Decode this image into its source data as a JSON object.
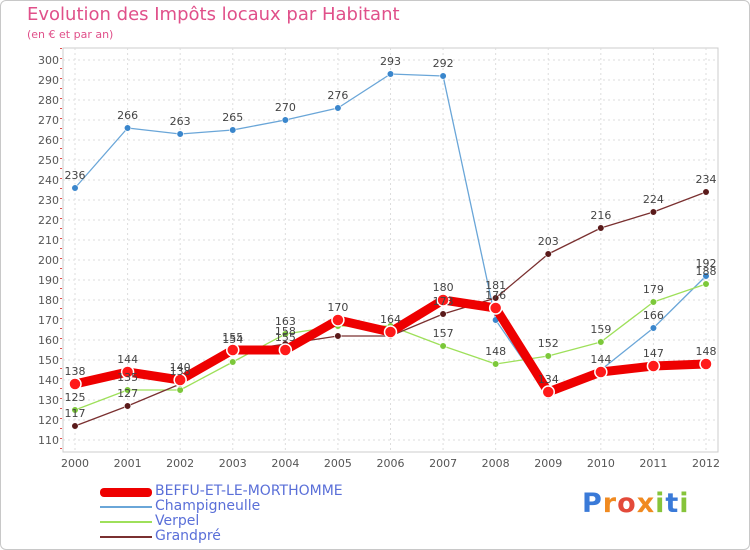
{
  "title": "Evolution des Impôts locaux par Habitant",
  "subtitle": "(en € et par an)",
  "logo_text": "Proxiti",
  "chart_data": {
    "type": "line",
    "title": "Evolution des Impôts locaux par Habitant",
    "subtitle": "(en € et par an)",
    "x": [
      "2000",
      "2001",
      "2002",
      "2003",
      "2004",
      "2005",
      "2006",
      "2007",
      "2008",
      "2009",
      "2010",
      "2011",
      "2012"
    ],
    "ylim": [
      110,
      300
    ],
    "yticks": [
      110,
      120,
      130,
      140,
      150,
      160,
      170,
      180,
      190,
      200,
      210,
      220,
      230,
      240,
      250,
      260,
      270,
      280,
      290,
      300
    ],
    "grid": true,
    "legend_position": "bottom-left",
    "series": [
      {
        "name": "Champigneulle",
        "color": "#6aa6d8",
        "marker_color": "#3a86cc",
        "values": [
          236,
          266,
          263,
          265,
          270,
          276,
          293,
          292,
          170,
          132,
          145,
          166,
          192
        ],
        "labels": [
          "236",
          "266",
          "263",
          "265",
          "270",
          "276",
          "293",
          "292",
          "",
          "",
          "",
          "166",
          "192"
        ]
      },
      {
        "name": "Verpel",
        "color": "#9ee05a",
        "marker_color": "#7cc83a",
        "values": [
          125,
          135,
          135,
          149,
          163,
          167,
          167,
          157,
          148,
          152,
          159,
          179,
          188
        ],
        "labels": [
          "125",
          "135",
          "",
          "",
          "163",
          "",
          "",
          "157",
          "148",
          "152",
          "159",
          "179",
          "188"
        ]
      },
      {
        "name": "Grandpré",
        "color": "#7a3030",
        "marker_color": "#5a1a1a",
        "values": [
          117,
          127,
          138,
          154,
          158,
          162,
          162,
          173,
          181,
          203,
          216,
          224,
          234
        ],
        "labels": [
          "117",
          "127",
          "138",
          "154",
          "158",
          "",
          "",
          "173",
          "181",
          "203",
          "216",
          "224",
          "234"
        ]
      },
      {
        "name": "BEFFU-ET-LE-MORTHOMME",
        "color": "#ee0000",
        "marker_color": "#ff1a1a",
        "values": [
          138,
          144,
          140,
          155,
          155,
          170,
          164,
          180,
          176,
          134,
          144,
          147,
          148
        ],
        "labels": [
          "138",
          "144",
          "140",
          "155",
          "155",
          "170",
          "164",
          "180",
          "176",
          "134",
          "144",
          "147",
          "148"
        ]
      }
    ]
  },
  "legend": [
    {
      "label": "BEFFU-ET-LE-MORTHOMME",
      "color": "#ee0000",
      "thick": true
    },
    {
      "label": "Champigneulle",
      "color": "#6aa6d8",
      "thick": false
    },
    {
      "label": "Verpel",
      "color": "#9ee05a",
      "thick": false
    },
    {
      "label": "Grandpré",
      "color": "#7a3030",
      "thick": false
    }
  ]
}
